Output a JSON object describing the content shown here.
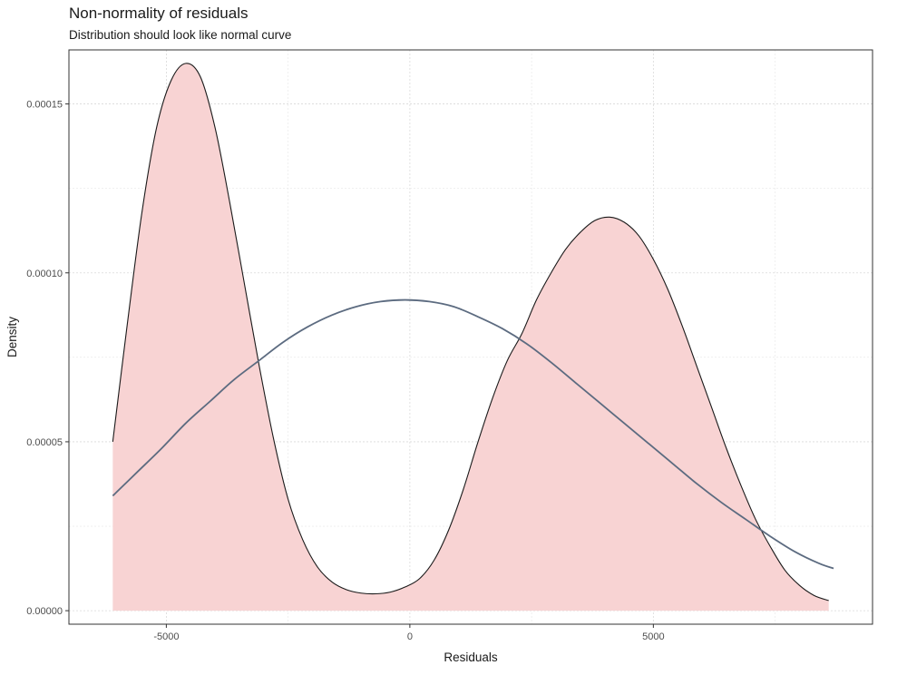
{
  "chart_data": {
    "type": "area",
    "title": "Non-normality of residuals",
    "subtitle": "Distribution should look like normal curve",
    "xlabel": "Residuals",
    "ylabel": "Density",
    "xlim": [
      -7000,
      9500
    ],
    "ylim": [
      -4e-06,
      0.000166
    ],
    "x_ticks": [
      -5000,
      0,
      5000
    ],
    "x_tick_labels": [
      "-5000",
      "0",
      "5000"
    ],
    "y_ticks": [
      0,
      5e-05,
      0.0001,
      0.00015
    ],
    "y_tick_labels": [
      "0.00000",
      "0.00005",
      "0.00010",
      "0.00015"
    ],
    "grid": true,
    "series": [
      {
        "kind": "density-area",
        "x": [
          -6100,
          -5800,
          -5500,
          -5200,
          -4900,
          -4600,
          -4300,
          -4000,
          -3700,
          -3400,
          -3100,
          -2800,
          -2500,
          -2200,
          -1900,
          -1600,
          -1300,
          -1000,
          -700,
          -400,
          -100,
          200,
          500,
          800,
          1100,
          1400,
          1700,
          2000,
          2300,
          2600,
          2900,
          3200,
          3500,
          3800,
          4100,
          4400,
          4700,
          5000,
          5300,
          5600,
          5900,
          6200,
          6500,
          6800,
          7100,
          7400,
          7700,
          8000,
          8300,
          8600
        ],
        "y": [
          5e-05,
          8.5e-05,
          0.000118,
          0.000143,
          0.000157,
          0.000162,
          0.000158,
          0.000143,
          0.000121,
          9.7e-05,
          7.3e-05,
          5.1e-05,
          3.3e-05,
          2.1e-05,
          1.3e-05,
          8.5e-06,
          6.2e-06,
          5.2e-06,
          5e-06,
          5.5e-06,
          7e-06,
          9.5e-06,
          1.5e-05,
          2.4e-05,
          3.6e-05,
          5e-05,
          6.3e-05,
          7.4e-05,
          8.2e-05,
          9.2e-05,
          0.0001,
          0.000107,
          0.000112,
          0.0001155,
          0.0001165,
          0.000115,
          0.000111,
          0.000104,
          9.5e-05,
          8.4e-05,
          7.2e-05,
          6e-05,
          4.8e-05,
          3.7e-05,
          2.7e-05,
          1.9e-05,
          1.2e-05,
          7.5e-06,
          4.5e-06,
          3e-06
        ],
        "fill": "#f8d3d3",
        "stroke": "#1a1a1a"
      },
      {
        "kind": "normal-curve",
        "x": [
          -6100,
          -5600,
          -5100,
          -4600,
          -4100,
          -3600,
          -3100,
          -2600,
          -2100,
          -1600,
          -1100,
          -600,
          -100,
          400,
          900,
          1400,
          1900,
          2400,
          2900,
          3400,
          3900,
          4400,
          4900,
          5400,
          5900,
          6400,
          6900,
          7400,
          7900,
          8400,
          8700
        ],
        "y": [
          3.4e-05,
          4.1e-05,
          4.8e-05,
          5.55e-05,
          6.2e-05,
          6.85e-05,
          7.4e-05,
          7.95e-05,
          8.4e-05,
          8.75e-05,
          9e-05,
          9.15e-05,
          9.2e-05,
          9.15e-05,
          9e-05,
          8.7e-05,
          8.35e-05,
          7.9e-05,
          7.35e-05,
          6.75e-05,
          6.15e-05,
          5.55e-05,
          4.95e-05,
          4.35e-05,
          3.75e-05,
          3.2e-05,
          2.7e-05,
          2.2e-05,
          1.75e-05,
          1.4e-05,
          1.25e-05
        ],
        "stroke": "#5c6b80"
      }
    ]
  }
}
